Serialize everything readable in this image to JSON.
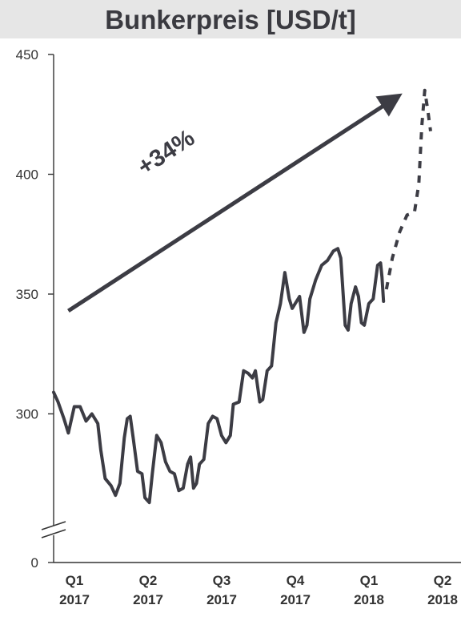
{
  "chart_data": {
    "type": "line",
    "title": "Bunkerpreis [USD/t]",
    "xlabel": "",
    "ylabel": "",
    "ylim": [
      250,
      450
    ],
    "axis_break": true,
    "y_break_label": "0",
    "yticks": [
      "450",
      "400",
      "350",
      "300"
    ],
    "categories": [
      "Q1\n2017",
      "Q2\n2017",
      "Q3\n2017",
      "Q4\n2017",
      "Q1\n2018",
      "Q2\n2018"
    ],
    "series": [
      {
        "style": "solid",
        "points": [
          [
            0.0,
            309
          ],
          [
            0.06,
            305
          ],
          [
            0.14,
            298
          ],
          [
            0.2,
            292
          ],
          [
            0.28,
            303
          ],
          [
            0.36,
            303
          ],
          [
            0.44,
            297
          ],
          [
            0.52,
            300
          ],
          [
            0.6,
            296
          ],
          [
            0.64,
            285
          ],
          [
            0.7,
            273
          ],
          [
            0.78,
            270
          ],
          [
            0.84,
            266
          ],
          [
            0.9,
            271
          ],
          [
            0.96,
            290
          ],
          [
            1.0,
            298
          ],
          [
            1.04,
            299
          ],
          [
            1.08,
            290
          ],
          [
            1.14,
            276
          ],
          [
            1.2,
            275
          ],
          [
            1.24,
            265
          ],
          [
            1.3,
            263
          ],
          [
            1.34,
            275
          ],
          [
            1.4,
            291
          ],
          [
            1.46,
            288
          ],
          [
            1.52,
            280
          ],
          [
            1.58,
            276
          ],
          [
            1.64,
            275
          ],
          [
            1.7,
            268
          ],
          [
            1.76,
            269
          ],
          [
            1.82,
            279
          ],
          [
            1.86,
            282
          ],
          [
            1.9,
            269
          ],
          [
            1.94,
            271
          ],
          [
            1.98,
            279
          ],
          [
            2.04,
            281
          ],
          [
            2.1,
            296
          ],
          [
            2.16,
            299
          ],
          [
            2.22,
            298
          ],
          [
            2.28,
            291
          ],
          [
            2.34,
            288
          ],
          [
            2.4,
            291
          ],
          [
            2.44,
            304
          ],
          [
            2.52,
            305
          ],
          [
            2.58,
            318
          ],
          [
            2.64,
            317
          ],
          [
            2.7,
            315
          ],
          [
            2.74,
            318
          ],
          [
            2.8,
            305
          ],
          [
            2.84,
            306
          ],
          [
            2.9,
            318
          ],
          [
            2.96,
            320
          ],
          [
            3.02,
            338
          ],
          [
            3.08,
            346
          ],
          [
            3.14,
            359
          ],
          [
            3.2,
            348
          ],
          [
            3.24,
            344
          ],
          [
            3.3,
            347
          ],
          [
            3.34,
            349
          ],
          [
            3.4,
            334
          ],
          [
            3.44,
            337
          ],
          [
            3.48,
            348
          ],
          [
            3.56,
            356
          ],
          [
            3.64,
            362
          ],
          [
            3.72,
            364
          ],
          [
            3.8,
            368
          ],
          [
            3.86,
            369
          ],
          [
            3.9,
            365
          ],
          [
            3.96,
            337
          ],
          [
            4.0,
            335
          ],
          [
            4.04,
            346
          ],
          [
            4.1,
            353
          ],
          [
            4.14,
            349
          ],
          [
            4.18,
            338
          ],
          [
            4.22,
            337
          ],
          [
            4.28,
            346
          ],
          [
            4.34,
            348
          ],
          [
            4.4,
            362
          ],
          [
            4.44,
            363
          ],
          [
            4.46,
            357
          ],
          [
            4.48,
            347
          ]
        ]
      },
      {
        "style": "dashed",
        "points": [
          [
            4.52,
            352
          ],
          [
            4.6,
            365
          ],
          [
            4.7,
            376
          ],
          [
            4.8,
            383
          ],
          [
            4.9,
            384
          ],
          [
            4.96,
            396
          ],
          [
            5.0,
            420
          ],
          [
            5.04,
            435
          ],
          [
            5.08,
            427
          ],
          [
            5.12,
            418
          ]
        ]
      }
    ],
    "annotations": [
      {
        "text": "+34%",
        "type": "arrow",
        "from": [
          0.2,
          343
        ],
        "to": [
          4.6,
          431
        ]
      }
    ]
  }
}
